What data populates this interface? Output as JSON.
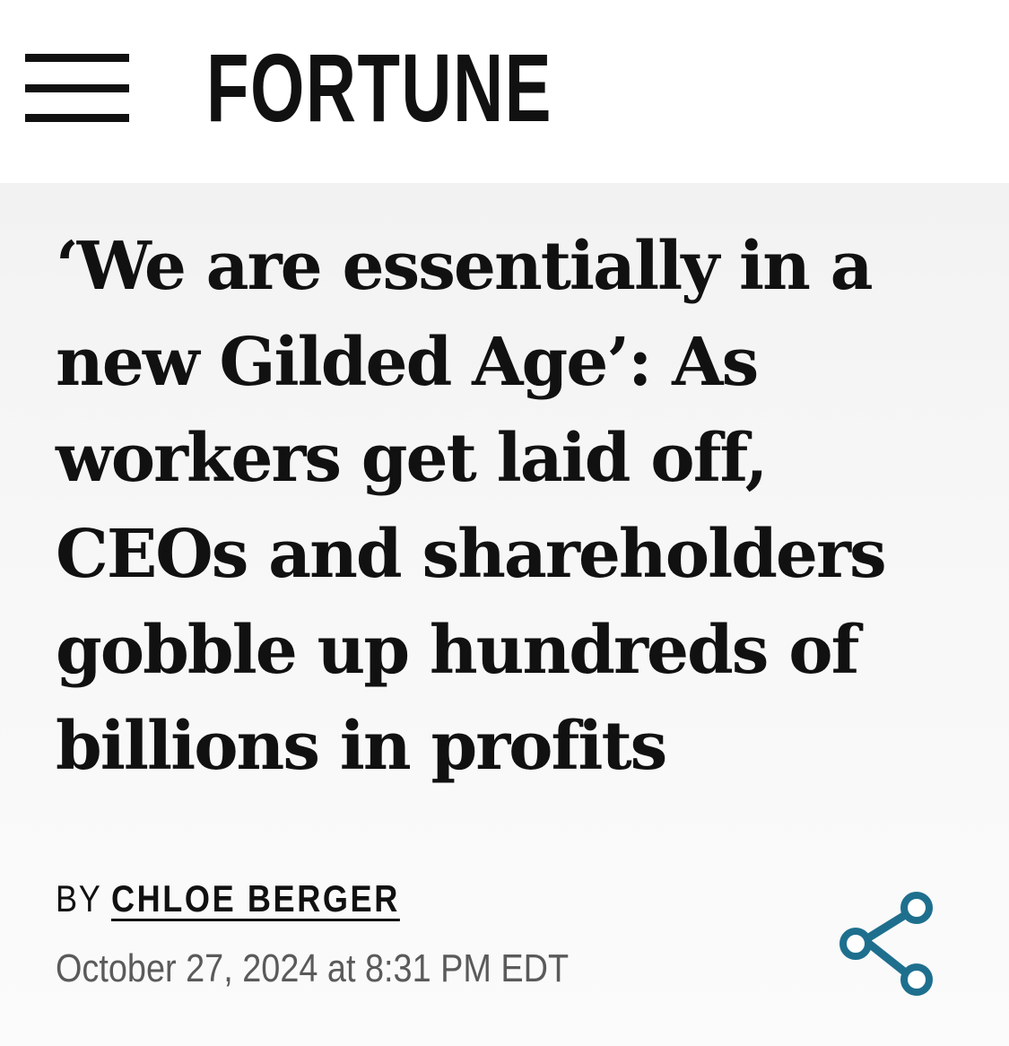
{
  "header": {
    "menu_icon": "hamburger-menu-icon",
    "logo_text": "FORTUNE"
  },
  "article": {
    "headline": "‘We are essentially in a new Gilded Age’: As workers get laid off, CEOs and shareholders gobble up hundreds of billions in profits",
    "byline_prefix": "BY",
    "author": "CHLOE BERGER",
    "timestamp": "October 27, 2024 at 8:31 PM EDT",
    "share_icon": "share-icon"
  },
  "colors": {
    "text": "#111111",
    "meta_text": "#5a5a5a",
    "share_accent": "#1e6f8e",
    "article_background": "#f4f4f4"
  }
}
